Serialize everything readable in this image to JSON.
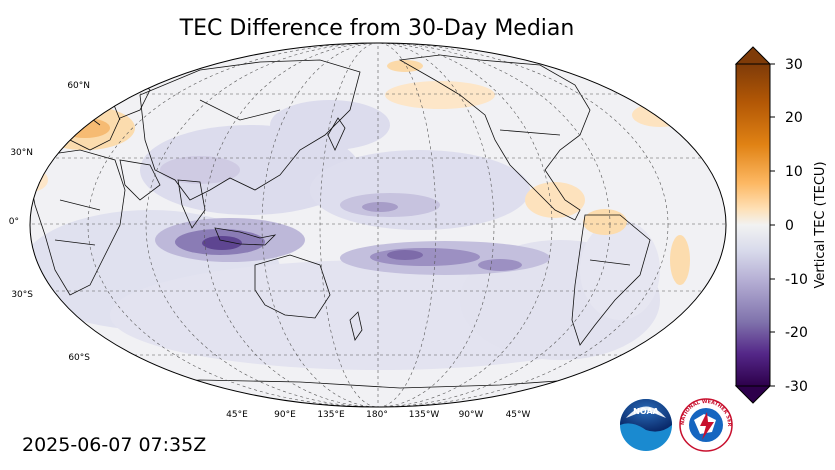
{
  "title": "TEC Difference from 30-Day Median",
  "timestamp": "2025-06-07 07:35Z",
  "lat_labels": [
    "60°N",
    "30°N",
    "0°",
    "30°S",
    "60°S"
  ],
  "lon_labels": [
    "45°E",
    "90°E",
    "135°E",
    "180°",
    "135°W",
    "90°W",
    "45°W"
  ],
  "colorbar": {
    "label": "Vertical TEC (TECU)",
    "ticks": [
      "30",
      "20",
      "10",
      "0",
      "-10",
      "-20",
      "-30"
    ],
    "range": [
      -30,
      30
    ],
    "colormap": "PuOr_r",
    "extend": "both"
  },
  "colors": {
    "negative_strong": "#3b0f5e",
    "negative_weak": "#dcdcee",
    "neutral": "#f4f4f4",
    "positive_weak": "#fbe2bd",
    "positive_strong": "#7b3a06"
  },
  "logos": {
    "noaa": {
      "icon": "noaa-logo",
      "text": "NOAA"
    },
    "nws": {
      "icon": "nws-logo",
      "text": "NATIONAL WEATHER SERVICE"
    }
  }
}
